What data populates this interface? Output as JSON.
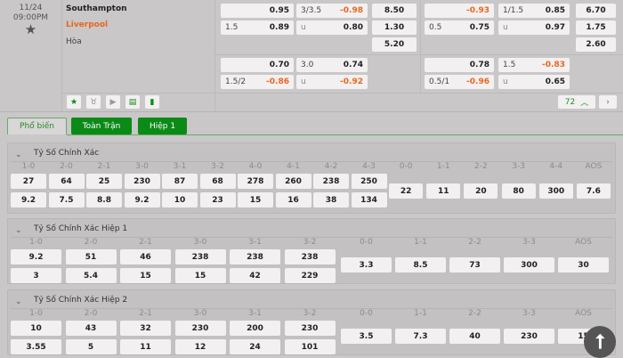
{
  "match": {
    "date": "11/24",
    "time": "09:00PM",
    "home": "Southampton",
    "away": "Liverpool",
    "draw": "Hòa",
    "colors": {
      "away": "#e9661f",
      "negative": "#e9661f",
      "accent": "#0b8a17"
    }
  },
  "odds": [
    [
      {
        "h": "",
        "v": "0.95"
      },
      {
        "h": "3/3.5",
        "v": "-0.98"
      },
      {
        "h": "",
        "v": "8.50"
      },
      {
        "h": "",
        "v": "-0.93"
      },
      {
        "h": "1/1.5",
        "v": "0.85"
      },
      {
        "h": "",
        "v": "6.70"
      }
    ],
    [
      {
        "h": "1.5",
        "v": "0.89"
      },
      {
        "h": "u",
        "v": "0.80"
      },
      {
        "h": "",
        "v": "1.30"
      },
      {
        "h": "0.5",
        "v": "0.75"
      },
      {
        "h": "u",
        "v": "0.97"
      },
      {
        "h": "",
        "v": "1.75"
      }
    ],
    [
      null,
      null,
      {
        "h": "",
        "v": "5.20"
      },
      null,
      null,
      {
        "h": "",
        "v": "2.60"
      }
    ],
    [
      {
        "h": "",
        "v": "0.70"
      },
      {
        "h": "3.0",
        "v": "0.74"
      },
      null,
      {
        "h": "",
        "v": "0.78"
      },
      {
        "h": "1.5",
        "v": "-0.83"
      },
      null
    ],
    [
      {
        "h": "1.5/2",
        "v": "-0.86"
      },
      {
        "h": "u",
        "v": "-0.92"
      },
      null,
      {
        "h": "0.5/1",
        "v": "-0.96"
      },
      {
        "h": "u",
        "v": "0.65"
      },
      null
    ]
  ],
  "toolbar": {
    "icons": [
      "star-icon",
      "lion-icon",
      "play-icon",
      "scoreboard-icon",
      "stats-icon"
    ],
    "count": "72"
  },
  "tabs": [
    "Phổ biến",
    "Toàn Trận",
    "Hiệp 1"
  ],
  "sections": [
    {
      "title": "Tỷ Số Chính Xác",
      "left": [
        "1-0",
        "2-0",
        "2-1",
        "3-0",
        "3-1",
        "3-2",
        "4-0",
        "4-1",
        "4-2",
        "4-3"
      ],
      "row1": [
        "27",
        "64",
        "25",
        "230",
        "87",
        "68",
        "278",
        "260",
        "238",
        "250"
      ],
      "row2": [
        "9.2",
        "7.5",
        "8.8",
        "9.2",
        "10",
        "23",
        "15",
        "16",
        "38",
        "134"
      ],
      "right": [
        "0-0",
        "1-1",
        "2-2",
        "3-3",
        "4-4",
        "AOS"
      ],
      "rvals": [
        "22",
        "11",
        "20",
        "80",
        "300",
        "7.6"
      ]
    },
    {
      "title": "Tỷ Số Chính Xác Hiệp 1",
      "left": [
        "1-0",
        "2-0",
        "2-1",
        "3-0",
        "3-1",
        "3-2"
      ],
      "row1": [
        "9.2",
        "51",
        "46",
        "238",
        "238",
        "238"
      ],
      "row2": [
        "3",
        "5.4",
        "15",
        "15",
        "42",
        "229"
      ],
      "right": [
        "0-0",
        "1-1",
        "2-2",
        "3-3",
        "AOS"
      ],
      "rvals": [
        "3.3",
        "8.5",
        "73",
        "300",
        "30"
      ]
    },
    {
      "title": "Tỷ Số Chính Xác Hiệp 2",
      "left": [
        "1-0",
        "2-0",
        "2-1",
        "3-0",
        "3-1",
        "3-2"
      ],
      "row1": [
        "10",
        "43",
        "32",
        "230",
        "200",
        "230"
      ],
      "row2": [
        "3.55",
        "5",
        "11",
        "12",
        "24",
        "101"
      ],
      "right": [
        "0-0",
        "1-1",
        "2-2",
        "3-3",
        "AOS"
      ],
      "rvals": [
        "3.5",
        "7.3",
        "40",
        "230",
        "15"
      ]
    }
  ]
}
